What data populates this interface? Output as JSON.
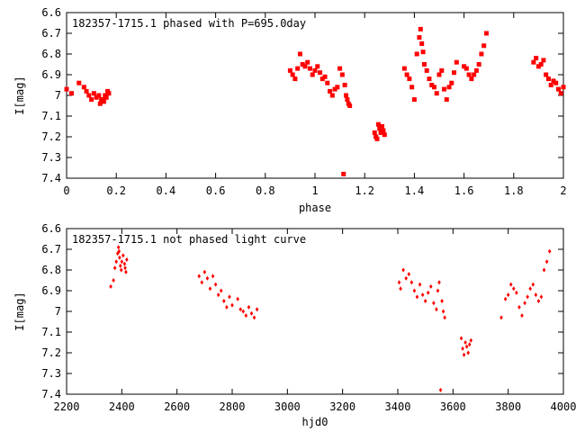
{
  "chart_data": [
    {
      "type": "scatter",
      "title": "182357-1715.1 phased with P=695.0day",
      "xlabel": "phase",
      "ylabel": "I[mag]",
      "xlim": [
        0,
        2
      ],
      "ylim": [
        6.6,
        7.4
      ],
      "y_inverted": true,
      "x_ticks": [
        "0",
        "0.2",
        "0.4",
        "0.6",
        "0.8",
        "1",
        "1.2",
        "1.4",
        "1.6",
        "1.8",
        "2"
      ],
      "y_ticks": [
        "6.6",
        "6.7",
        "6.8",
        "6.9",
        "7",
        "7.1",
        "7.2",
        "7.3",
        "7.4"
      ],
      "x_tick_values": [
        0,
        0.2,
        0.4,
        0.6,
        0.8,
        1.0,
        1.2,
        1.4,
        1.6,
        1.8,
        2.0
      ],
      "y_tick_values": [
        6.6,
        6.7,
        6.8,
        6.9,
        7.0,
        7.1,
        7.2,
        7.3,
        7.4
      ],
      "grid": false,
      "marker_color": "#ff0000",
      "series": [
        {
          "x": [
            0.0,
            0.02,
            0.05,
            0.07,
            0.08,
            0.09,
            0.1,
            0.11,
            0.12,
            0.13,
            0.14,
            0.15,
            0.16,
            0.17,
            0.165,
            0.155,
            0.145,
            0.135,
            0.9,
            0.91,
            0.92,
            0.93,
            0.94,
            0.95,
            0.96,
            0.97,
            0.98,
            0.99,
            1.0,
            1.01,
            1.02,
            1.03,
            1.04,
            1.05,
            1.06,
            1.07,
            1.08,
            1.09,
            1.1,
            1.11,
            1.12,
            1.125,
            1.13,
            1.135,
            1.14,
            1.115,
            1.24,
            1.245,
            1.25,
            1.255,
            1.26,
            1.265,
            1.27,
            1.275,
            1.28,
            1.36,
            1.37,
            1.38,
            1.39,
            1.4,
            1.41,
            1.42,
            1.425,
            1.43,
            1.435,
            1.44,
            1.45,
            1.46,
            1.47,
            1.48,
            1.49,
            1.5,
            1.51,
            1.52,
            1.53,
            1.54,
            1.55,
            1.56,
            1.57,
            1.6,
            1.61,
            1.62,
            1.63,
            1.64,
            1.65,
            1.66,
            1.67,
            1.68,
            1.69,
            1.88,
            1.89,
            1.9,
            1.91,
            1.92,
            1.93,
            1.94,
            1.95,
            1.96,
            1.97,
            1.98,
            1.99,
            2.0
          ],
          "y": [
            6.97,
            6.99,
            6.94,
            6.96,
            6.98,
            7.0,
            7.02,
            6.99,
            7.01,
            7.0,
            7.02,
            7.03,
            7.01,
            6.99,
            6.98,
            7.0,
            7.02,
            7.04,
            6.88,
            6.9,
            6.92,
            6.87,
            6.8,
            6.85,
            6.86,
            6.84,
            6.87,
            6.9,
            6.88,
            6.86,
            6.89,
            6.92,
            6.91,
            6.94,
            6.98,
            7.0,
            6.97,
            6.96,
            6.87,
            6.9,
            6.95,
            7.0,
            7.02,
            7.04,
            7.05,
            7.38,
            7.18,
            7.2,
            7.21,
            7.14,
            7.16,
            7.18,
            7.15,
            7.17,
            7.19,
            6.87,
            6.9,
            6.92,
            6.96,
            7.02,
            6.8,
            6.72,
            6.68,
            6.75,
            6.79,
            6.85,
            6.88,
            6.92,
            6.95,
            6.96,
            6.99,
            6.9,
            6.88,
            6.97,
            7.02,
            6.96,
            6.94,
            6.89,
            6.84,
            6.86,
            6.87,
            6.9,
            6.92,
            6.9,
            6.88,
            6.85,
            6.8,
            6.76,
            6.7,
            6.84,
            6.82,
            6.86,
            6.85,
            6.83,
            6.9,
            6.92,
            6.95,
            6.93,
            6.94,
            6.97,
            6.99,
            6.96
          ]
        }
      ]
    },
    {
      "type": "scatter",
      "title": "182357-1715.1 not phased light curve",
      "xlabel": "hjd0",
      "ylabel": "I[mag]",
      "xlim": [
        2200,
        4000
      ],
      "ylim": [
        6.6,
        7.4
      ],
      "y_inverted": true,
      "x_ticks": [
        "2200",
        "2400",
        "2600",
        "2800",
        "3000",
        "3200",
        "3400",
        "3600",
        "3800",
        "4000"
      ],
      "y_ticks": [
        "6.6",
        "6.7",
        "6.8",
        "6.9",
        "7",
        "7.1",
        "7.2",
        "7.3",
        "7.4"
      ],
      "x_tick_values": [
        2200,
        2400,
        2600,
        2800,
        3000,
        3200,
        3400,
        3600,
        3800,
        4000
      ],
      "y_tick_values": [
        6.6,
        6.7,
        6.8,
        6.9,
        7.0,
        7.1,
        7.2,
        7.3,
        7.4
      ],
      "grid": false,
      "marker_color": "#ff0000",
      "series": [
        {
          "x": [
            2360,
            2370,
            2375,
            2380,
            2385,
            2388,
            2390,
            2392,
            2395,
            2398,
            2400,
            2405,
            2410,
            2412,
            2415,
            2418,
            2680,
            2690,
            2700,
            2710,
            2720,
            2730,
            2740,
            2750,
            2760,
            2770,
            2780,
            2790,
            2800,
            2820,
            2830,
            2840,
            2850,
            2860,
            2870,
            2880,
            2890,
            3405,
            3410,
            3420,
            3430,
            3440,
            3450,
            3460,
            3470,
            3480,
            3490,
            3500,
            3510,
            3520,
            3530,
            3540,
            3545,
            3550,
            3555,
            3560,
            3565,
            3570,
            3630,
            3635,
            3640,
            3645,
            3650,
            3655,
            3660,
            3665,
            3775,
            3790,
            3800,
            3810,
            3820,
            3830,
            3840,
            3850,
            3860,
            3870,
            3880,
            3890,
            3900,
            3910,
            3920,
            3930,
            3940,
            3950
          ],
          "y": [
            6.88,
            6.85,
            6.79,
            6.76,
            6.72,
            6.69,
            6.71,
            6.74,
            6.78,
            6.8,
            6.76,
            6.73,
            6.77,
            6.79,
            6.81,
            6.75,
            6.83,
            6.86,
            6.81,
            6.84,
            6.89,
            6.83,
            6.87,
            6.92,
            6.9,
            6.95,
            6.98,
            6.93,
            6.97,
            6.94,
            6.99,
            7.0,
            7.02,
            6.98,
            7.01,
            7.03,
            6.99,
            6.86,
            6.89,
            6.8,
            6.84,
            6.82,
            6.86,
            6.9,
            6.93,
            6.87,
            6.92,
            6.95,
            6.91,
            6.88,
            6.96,
            6.99,
            6.9,
            6.86,
            7.38,
            6.95,
            7.0,
            7.03,
            7.13,
            7.18,
            7.21,
            7.15,
            7.17,
            7.2,
            7.16,
            7.14,
            7.03,
            6.94,
            6.92,
            6.87,
            6.89,
            6.91,
            6.98,
            7.02,
            6.96,
            6.93,
            6.89,
            6.87,
            6.92,
            6.95,
            6.93,
            6.8,
            6.76,
            6.71
          ]
        }
      ]
    }
  ]
}
